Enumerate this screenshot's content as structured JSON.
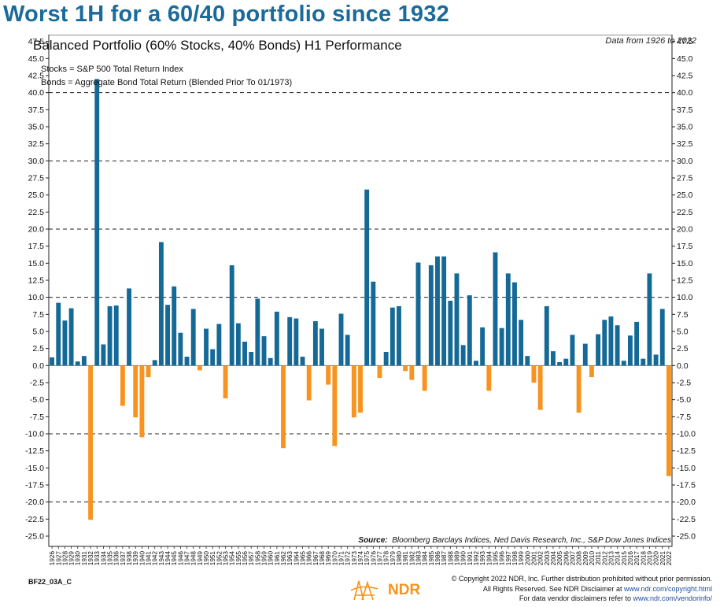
{
  "headline": "Worst 1H for a 60/40 portfolio since 1932",
  "subtitle": "Data from 1926 to 2022",
  "notes": {
    "stocks": "Stocks = S&P 500 Total Return Index",
    "bonds": "Bonds = Aggregate Bond Total Return (Blended Prior To 01/1973)"
  },
  "source": {
    "label": "Source:",
    "text": "Bloomberg Barclays Indices, Ned Davis Research, Inc., S&P Dow Jones Indices"
  },
  "chart_code": "BF22_03A_C",
  "logo_text": "NDR",
  "copyright": {
    "line1": "© Copyright 2022 NDR, Inc. Further distribution prohibited without prior permission.",
    "line2_prefix": "All Rights Reserved. See NDR Disclaimer at ",
    "line2_link": "www.ndr.com/copyright.html",
    "line3_prefix": "For data vendor disclaimers refer to ",
    "line3_link": "www.ndr.com/vendorinfo/"
  },
  "colors": {
    "positive": "#146996",
    "negative": "#f7931e",
    "headline": "#1a6a9a",
    "logo": "#f7941d"
  },
  "chart_data": {
    "type": "bar",
    "title": "Balanced Portfolio (60% Stocks, 40% Bonds) H1 Performance",
    "xlabel": "",
    "ylabel": "",
    "ylim": [
      -26.5,
      48.5
    ],
    "ytick_start": -25,
    "ytick_end": 47.5,
    "ytick_step": 2.5,
    "dashed_gridlines": [
      -20,
      -10,
      10,
      20,
      30,
      40
    ],
    "categories": [
      "1926",
      "1927",
      "1928",
      "1929",
      "1930",
      "1931",
      "1932",
      "1933",
      "1934",
      "1935",
      "1936",
      "1937",
      "1938",
      "1939",
      "1940",
      "1941",
      "1942",
      "1943",
      "1944",
      "1945",
      "1946",
      "1947",
      "1948",
      "1949",
      "1950",
      "1951",
      "1952",
      "1953",
      "1954",
      "1955",
      "1956",
      "1957",
      "1958",
      "1959",
      "1960",
      "1961",
      "1962",
      "1963",
      "1964",
      "1965",
      "1966",
      "1967",
      "1968",
      "1969",
      "1970",
      "1971",
      "1972",
      "1973",
      "1974",
      "1975",
      "1976",
      "1977",
      "1978",
      "1979",
      "1980",
      "1981",
      "1982",
      "1983",
      "1984",
      "1985",
      "1986",
      "1987",
      "1988",
      "1989",
      "1990",
      "1991",
      "1992",
      "1993",
      "1994",
      "1995",
      "1996",
      "1997",
      "1998",
      "1999",
      "2000",
      "2001",
      "2002",
      "2003",
      "2004",
      "2005",
      "2006",
      "2007",
      "2008",
      "2009",
      "2010",
      "2011",
      "2012",
      "2013",
      "2014",
      "2015",
      "2016",
      "2017",
      "2018",
      "2019",
      "2020",
      "2021",
      "2022"
    ],
    "values": [
      1.2,
      9.2,
      6.6,
      8.4,
      0.6,
      1.4,
      -22.6,
      42.0,
      3.1,
      8.7,
      8.8,
      -5.9,
      11.3,
      -7.6,
      -10.5,
      -1.7,
      0.8,
      18.1,
      8.9,
      11.6,
      4.8,
      1.3,
      8.3,
      -0.7,
      5.4,
      2.4,
      6.1,
      -4.8,
      14.7,
      6.2,
      3.5,
      2.0,
      9.8,
      4.3,
      1.1,
      7.9,
      -12.1,
      7.1,
      6.9,
      1.3,
      -5.1,
      6.5,
      5.4,
      -2.8,
      -11.8,
      7.6,
      4.5,
      -7.6,
      -6.9,
      25.8,
      12.3,
      -1.8,
      2.0,
      8.5,
      8.7,
      -0.8,
      -2.1,
      15.1,
      -3.7,
      14.7,
      16.0,
      16.0,
      9.5,
      13.5,
      3.0,
      10.3,
      0.7,
      5.6,
      -3.7,
      16.6,
      5.5,
      13.5,
      12.2,
      6.7,
      1.4,
      -2.5,
      -6.5,
      8.7,
      2.1,
      0.5,
      1.0,
      4.5,
      -6.9,
      3.2,
      -1.7,
      4.6,
      6.7,
      7.2,
      5.9,
      0.7,
      4.4,
      6.4,
      1.0,
      13.5,
      1.6,
      8.3,
      -16.2
    ]
  }
}
